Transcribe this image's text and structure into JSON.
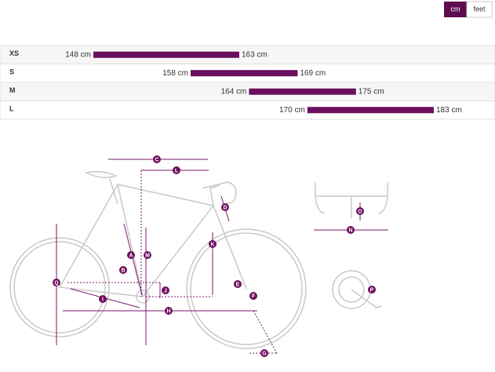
{
  "units_toggle": [
    "cm",
    "feet"
  ],
  "chart_data": {
    "type": "range-bar",
    "categories": [
      "XS",
      "S",
      "M",
      "L"
    ],
    "color": "#6b0e5e",
    "series": [
      {
        "name": "min",
        "values": [
          148,
          158,
          164,
          170
        ],
        "value_labels": [
          "148 cm",
          "158 cm",
          "164 cm",
          "170 cm"
        ]
      },
      {
        "name": "max",
        "values": [
          163,
          169,
          175,
          183
        ],
        "value_labels": [
          "163 cm",
          "169 cm",
          "175 cm",
          "183 cm"
        ]
      }
    ]
  },
  "diagram": {
    "labels": [
      "A",
      "B",
      "C",
      "D",
      "E",
      "F",
      "G",
      "H",
      "I",
      "J",
      "K",
      "L",
      "M",
      "N",
      "O",
      "P",
      "Q"
    ]
  }
}
